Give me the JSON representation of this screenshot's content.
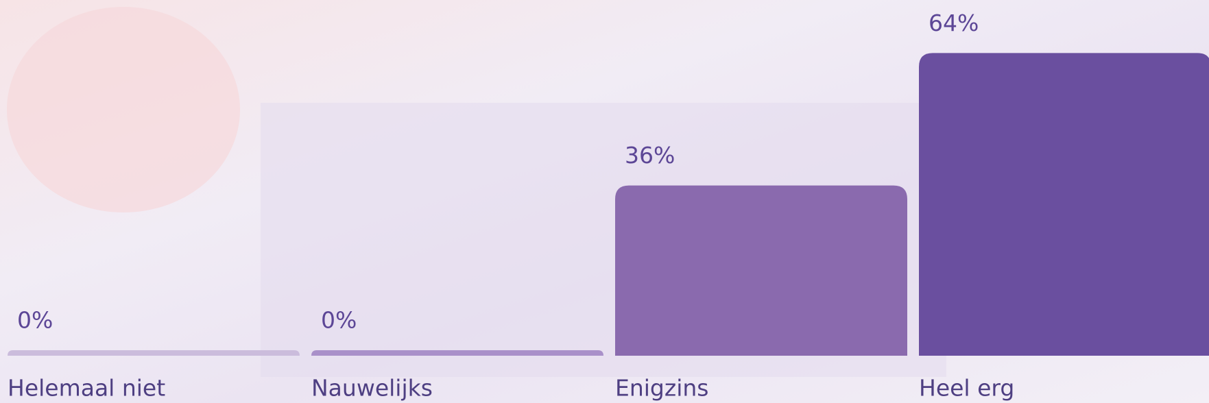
{
  "chart_data": {
    "type": "bar",
    "categories": [
      "Helemaal niet",
      "Nauwelijks",
      "Enigzins",
      "Heel erg"
    ],
    "values": [
      0,
      0,
      36,
      64
    ],
    "value_labels": [
      "0%",
      "0%",
      "36%",
      "64%"
    ],
    "colors": [
      "#cbbcdc",
      "#a990c9",
      "#8a6aae",
      "#6a4f9f"
    ]
  }
}
